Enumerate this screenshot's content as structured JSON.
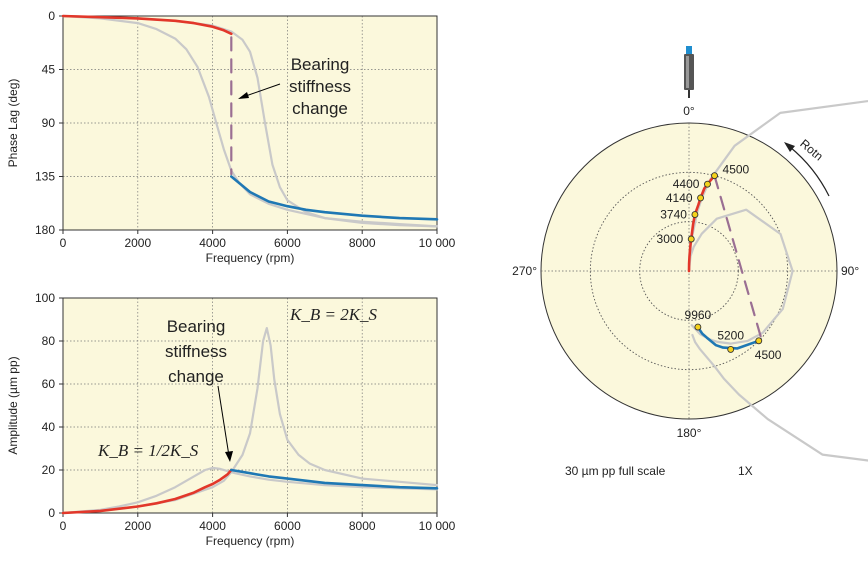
{
  "colors": {
    "plot_bg": "#fbf8dc",
    "red": "#e2372a",
    "blue": "#1f78b4",
    "gray": "#c9c9c9",
    "dash": "#9a6f93",
    "point": "#f5d21b"
  },
  "chart_data": [
    {
      "type": "line",
      "name": "phase",
      "xlabel": "Frequency (rpm)",
      "ylabel": "Phase Lag (deg)",
      "xlim": [
        0,
        10000
      ],
      "ylim": [
        180,
        0
      ],
      "x_ticks": [
        "0",
        "2000",
        "4000",
        "6000",
        "8000",
        "10 000"
      ],
      "y_ticks": [
        "0",
        "45",
        "90",
        "135",
        "180"
      ],
      "y_tick_values": [
        0,
        45,
        90,
        135,
        180
      ],
      "x_tick_values": [
        0,
        2000,
        4000,
        6000,
        8000,
        10000
      ],
      "grid": true,
      "series": [
        {
          "color": "gray",
          "x": [
            0,
            1000,
            2000,
            2500,
            3000,
            3300,
            3600,
            3900,
            4100,
            4300,
            4500,
            4700,
            5000,
            5500,
            6000,
            7000,
            8000,
            9000,
            10000
          ],
          "y": [
            0,
            2,
            6,
            11,
            19,
            28,
            43,
            68,
            90,
            112,
            130,
            140,
            150,
            158,
            163,
            170,
            173,
            175,
            177
          ]
        },
        {
          "color": "gray",
          "x": [
            0,
            1000,
            2000,
            3000,
            4000,
            4500,
            4800,
            5000,
            5200,
            5400,
            5600,
            5800,
            6000,
            6500,
            7000,
            8000,
            9000,
            10000
          ],
          "y": [
            0,
            1,
            2,
            4,
            8,
            13,
            20,
            30,
            52,
            90,
            125,
            144,
            155,
            165,
            170,
            174,
            176,
            177
          ]
        },
        {
          "color": "red",
          "x": [
            0,
            1000,
            2000,
            3000,
            3500,
            4000,
            4300,
            4500
          ],
          "y": [
            0,
            1,
            2,
            4,
            6,
            9,
            12,
            15
          ]
        },
        {
          "color": "blue",
          "x": [
            4500,
            5000,
            5500,
            6000,
            6500,
            7000,
            8000,
            9000,
            10000
          ],
          "y": [
            135,
            148,
            156,
            160,
            163,
            165,
            168,
            170,
            171
          ]
        },
        {
          "color": "dash",
          "dashed": true,
          "x": [
            4500,
            4500
          ],
          "y": [
            18,
            133
          ]
        }
      ]
    },
    {
      "type": "line",
      "name": "amplitude",
      "xlabel": "Frequency (rpm)",
      "ylabel": "Amplitude (µm pp)",
      "xlim": [
        0,
        10000
      ],
      "ylim": [
        0,
        100
      ],
      "x_ticks": [
        "0",
        "2000",
        "4000",
        "6000",
        "8000",
        "10 000"
      ],
      "y_ticks": [
        "0",
        "20",
        "40",
        "60",
        "80",
        "100"
      ],
      "y_tick_values": [
        0,
        20,
        40,
        60,
        80,
        100
      ],
      "x_tick_values": [
        0,
        2000,
        4000,
        6000,
        8000,
        10000
      ],
      "grid": true,
      "series": [
        {
          "color": "gray",
          "x": [
            0,
            1000,
            1500,
            2000,
            2500,
            3000,
            3500,
            3800,
            4000,
            4200,
            4400,
            4600,
            5000,
            5500,
            6000,
            7000,
            8000,
            9000,
            10000
          ],
          "y": [
            0,
            1.5,
            3,
            5,
            8,
            12,
            17,
            20,
            21,
            20.5,
            19.5,
            18.5,
            17,
            15.5,
            14.5,
            13,
            12,
            11.5,
            11
          ]
        },
        {
          "color": "gray",
          "x": [
            0,
            1000,
            2000,
            3000,
            3500,
            4000,
            4300,
            4500,
            4800,
            5000,
            5200,
            5350,
            5450,
            5550,
            5650,
            5800,
            6000,
            6300,
            6600,
            7000,
            8000,
            9000,
            10000
          ],
          "y": [
            0,
            1,
            3,
            6,
            9,
            12,
            15,
            19,
            27,
            37,
            58,
            80,
            86,
            78,
            62,
            46,
            34,
            27,
            23,
            20,
            16,
            14.5,
            13
          ]
        },
        {
          "color": "red",
          "x": [
            0,
            1000,
            2000,
            2500,
            3000,
            3500,
            3800,
            4000,
            4200,
            4400,
            4500
          ],
          "y": [
            0,
            1,
            3,
            4.5,
            6.5,
            9.5,
            12,
            13.5,
            15.5,
            18,
            20
          ]
        },
        {
          "color": "blue",
          "x": [
            4500,
            5000,
            5500,
            6000,
            7000,
            8000,
            9000,
            10000
          ],
          "y": [
            20,
            18.5,
            17,
            16,
            14,
            13,
            12,
            11.5
          ]
        }
      ]
    },
    {
      "type": "polar",
      "name": "orbit-polar",
      "angle_labels": [
        "0°",
        "90°",
        "180°",
        "270°"
      ],
      "rotation_label": "Rotn",
      "scale_label": "30 µm pp full scale",
      "mode_label": "1X",
      "full_scale": 30,
      "grid": true,
      "points": [
        {
          "label": "3000",
          "rpm": 3000,
          "amp": 6.5,
          "phase": 4
        },
        {
          "label": "3740",
          "rpm": 3740,
          "amp": 11.5,
          "phase": 6
        },
        {
          "label": "4140",
          "rpm": 4140,
          "amp": 15,
          "phase": 9
        },
        {
          "label": "4400",
          "rpm": 4400,
          "amp": 18,
          "phase": 12
        },
        {
          "label": "4500",
          "rpm": 4500,
          "amp": 20,
          "phase": 15
        },
        {
          "label": "4500",
          "rpm": 4500,
          "amp": 20,
          "phase": 135
        },
        {
          "label": "5200",
          "rpm": 5200,
          "amp": 18,
          "phase": 152
        },
        {
          "label": "9960",
          "rpm": 9960,
          "amp": 11.5,
          "phase": 171
        }
      ],
      "series": [
        {
          "color": "red",
          "amp": [
            0,
            1.5,
            3,
            5,
            6.5,
            9.5,
            11.5,
            13.5,
            15,
            17,
            18,
            20
          ],
          "phase": [
            0,
            1,
            2,
            3,
            4,
            5,
            6,
            8,
            9,
            10.5,
            12,
            15
          ]
        },
        {
          "color": "blue",
          "amp": [
            20,
            18.5,
            17,
            16,
            14,
            13,
            12,
            11.5
          ],
          "phase": [
            135,
            148,
            156,
            160,
            165,
            168,
            170,
            171
          ]
        },
        {
          "color": "gray",
          "amp": [
            0,
            3,
            5,
            8,
            12,
            17,
            20,
            21,
            20.5,
            19.5,
            18.5,
            17,
            15.5,
            14.5,
            13,
            12,
            11.5,
            11
          ],
          "phase": [
            0,
            6,
            11,
            19,
            28,
            43,
            68,
            90,
            112,
            130,
            140,
            150,
            158,
            163,
            170,
            173,
            175,
            177
          ]
        },
        {
          "color": "gray",
          "amp": [
            0,
            6,
            12,
            15,
            19,
            27,
            37,
            58,
            80,
            86,
            78,
            62,
            46,
            34,
            27,
            23,
            20,
            16,
            14.5,
            13
          ],
          "phase": [
            0,
            4,
            8,
            10,
            13,
            20,
            30,
            52,
            78,
            90,
            110,
            130,
            144,
            152,
            158,
            162,
            165,
            172,
            175,
            177
          ]
        },
        {
          "color": "dash",
          "dashed": true,
          "amp": [
            20,
            20
          ],
          "phase": [
            15,
            133
          ]
        }
      ]
    }
  ],
  "annotations": {
    "phase_stiffness": [
      "Bearing",
      "stiffness",
      "change"
    ],
    "amp_stiffness": [
      "Bearing",
      "stiffness",
      "change"
    ],
    "kb_low": "K_B = 1/2K_S",
    "kb_high": "K_B = 2K_S"
  }
}
